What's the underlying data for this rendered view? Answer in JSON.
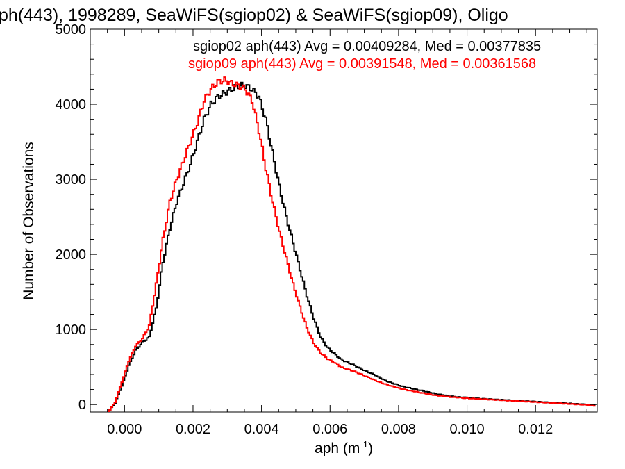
{
  "chart_data": {
    "type": "line",
    "title": "ph(443), 1998289, SeaWiFS(sgiop02) & SeaWiFS(sgiop09), Oligo",
    "xlabel": "aph (m",
    "xlabel_sup": "-1",
    "xlabel_close": ")",
    "ylabel": "Number of Observations",
    "xlim": [
      -0.001,
      0.0138
    ],
    "ylim": [
      -100,
      5000
    ],
    "xticks": [
      {
        "value": 0.0,
        "label": "0.000"
      },
      {
        "value": 0.002,
        "label": "0.002"
      },
      {
        "value": 0.004,
        "label": "0.004"
      },
      {
        "value": 0.006,
        "label": "0.006"
      },
      {
        "value": 0.008,
        "label": "0.008"
      },
      {
        "value": 0.01,
        "label": "0.010"
      },
      {
        "value": 0.012,
        "label": "0.012"
      }
    ],
    "yticks": [
      {
        "value": 0,
        "label": "0"
      },
      {
        "value": 1000,
        "label": "1000"
      },
      {
        "value": 2000,
        "label": "2000"
      },
      {
        "value": 3000,
        "label": "3000"
      },
      {
        "value": 4000,
        "label": "4000"
      },
      {
        "value": 5000,
        "label": "5000"
      }
    ],
    "legend": [
      {
        "text": "sgiop02 aph(443) Avg = 0.00409284, Med = 0.00377835",
        "color": "#000000"
      },
      {
        "text": "sgiop09 aph(443) Avg = 0.00391548, Med = 0.00361568",
        "color": "#ff0000"
      }
    ],
    "legend_position": "top-right",
    "series": [
      {
        "name": "sgiop02",
        "color": "#000000",
        "x": [
          -0.0005,
          -0.0003,
          -0.0001,
          0.0001,
          0.0003,
          0.0005,
          0.0007,
          0.0009,
          0.0011,
          0.0013,
          0.0015,
          0.0017,
          0.0019,
          0.0021,
          0.0023,
          0.0025,
          0.0027,
          0.0029,
          0.0031,
          0.0033,
          0.0035,
          0.0037,
          0.0039,
          0.0041,
          0.0043,
          0.0045,
          0.0047,
          0.0049,
          0.0051,
          0.0053,
          0.0055,
          0.0057,
          0.0059,
          0.0061,
          0.0063,
          0.0065,
          0.0067,
          0.0069,
          0.0071,
          0.0073,
          0.0075,
          0.0077,
          0.0079,
          0.0081,
          0.0083,
          0.0085,
          0.0087,
          0.0089,
          0.0091,
          0.0093,
          0.0095,
          0.0097,
          0.0099,
          0.0101,
          0.0103,
          0.0105,
          0.0107,
          0.0109,
          0.0111,
          0.0113,
          0.0115,
          0.0117,
          0.0119,
          0.0121,
          0.0123,
          0.0125,
          0.0127,
          0.0129,
          0.0131,
          0.0133,
          0.0135,
          0.0137
        ],
        "y": [
          -100,
          20,
          250,
          520,
          720,
          830,
          900,
          1280,
          1900,
          2350,
          2700,
          2950,
          3200,
          3500,
          3800,
          4000,
          4100,
          4150,
          4200,
          4250,
          4250,
          4200,
          4100,
          3800,
          3350,
          2900,
          2500,
          2150,
          1800,
          1450,
          1150,
          900,
          760,
          680,
          600,
          560,
          520,
          470,
          430,
          390,
          340,
          300,
          270,
          240,
          220,
          200,
          180,
          160,
          140,
          125,
          110,
          100,
          95,
          90,
          80,
          75,
          70,
          65,
          60,
          55,
          50,
          45,
          40,
          35,
          30,
          25,
          20,
          15,
          10,
          5,
          0,
          -10
        ]
      },
      {
        "name": "sgiop09",
        "color": "#ff0000",
        "x": [
          -0.0005,
          -0.0003,
          -0.0001,
          0.0001,
          0.0003,
          0.0005,
          0.0007,
          0.0009,
          0.0011,
          0.0013,
          0.0015,
          0.0017,
          0.0019,
          0.0021,
          0.0023,
          0.0025,
          0.0027,
          0.0029,
          0.0031,
          0.0033,
          0.0035,
          0.0037,
          0.0039,
          0.0041,
          0.0043,
          0.0045,
          0.0047,
          0.0049,
          0.0051,
          0.0053,
          0.0055,
          0.0057,
          0.0059,
          0.0061,
          0.0063,
          0.0065,
          0.0067,
          0.0069,
          0.0071,
          0.0073,
          0.0075,
          0.0077,
          0.0079,
          0.0081,
          0.0083,
          0.0085,
          0.0087,
          0.0089,
          0.0091,
          0.0093,
          0.0095,
          0.0097,
          0.0099,
          0.0101,
          0.0103,
          0.0105,
          0.0107,
          0.0109,
          0.0111,
          0.0113,
          0.0115,
          0.0117,
          0.0119,
          0.0121,
          0.0123,
          0.0125,
          0.0127,
          0.0129,
          0.0131,
          0.0133,
          0.0135,
          0.0137
        ],
        "y": [
          -100,
          30,
          300,
          580,
          780,
          880,
          1050,
          1600,
          2200,
          2700,
          3000,
          3250,
          3500,
          3750,
          4050,
          4200,
          4300,
          4320,
          4280,
          4250,
          4200,
          4050,
          3650,
          3150,
          2700,
          2300,
          1950,
          1600,
          1300,
          1020,
          820,
          690,
          610,
          560,
          500,
          470,
          440,
          400,
          360,
          320,
          285,
          255,
          230,
          205,
          185,
          170,
          150,
          135,
          120,
          110,
          100,
          95,
          85,
          80,
          75,
          70,
          65,
          60,
          55,
          50,
          45,
          40,
          35,
          30,
          25,
          20,
          15,
          10,
          5,
          0,
          -5,
          -15
        ]
      }
    ]
  }
}
